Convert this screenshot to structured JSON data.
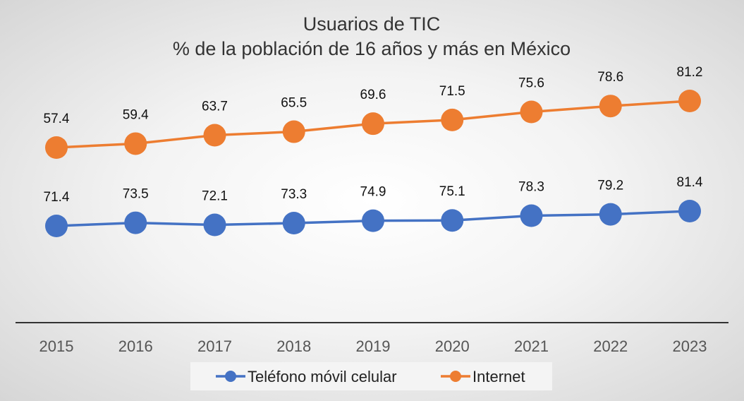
{
  "chart_data": {
    "type": "line",
    "title": "Usuarios de TIC",
    "subtitle": "% de la población de 16 años y más en México",
    "xlabel": "",
    "ylabel": "",
    "ylim": [
      0,
      90
    ],
    "grid": false,
    "legend_position": "bottom",
    "x": [
      "2015",
      "2016",
      "2017",
      "2018",
      "2019",
      "2020",
      "2021",
      "2022",
      "2023"
    ],
    "series": [
      {
        "name": "Teléfono móvil celular",
        "color": "#4472C4",
        "values": [
          71.4,
          73.5,
          72.1,
          73.3,
          74.9,
          75.1,
          78.3,
          79.2,
          81.4
        ],
        "labels": [
          "71.4",
          "73.5",
          "72.1",
          "73.3",
          "74.9",
          "75.1",
          "78.3",
          "79.2",
          "81.4"
        ]
      },
      {
        "name": "Internet",
        "color": "#ED7D31",
        "values": [
          57.4,
          59.4,
          63.7,
          65.5,
          69.6,
          71.5,
          75.6,
          78.6,
          81.2
        ],
        "labels": [
          "57.4",
          "59.4",
          "63.7",
          "65.5",
          "69.6",
          "71.5",
          "75.6",
          "78.6",
          "81.2"
        ]
      }
    ]
  }
}
